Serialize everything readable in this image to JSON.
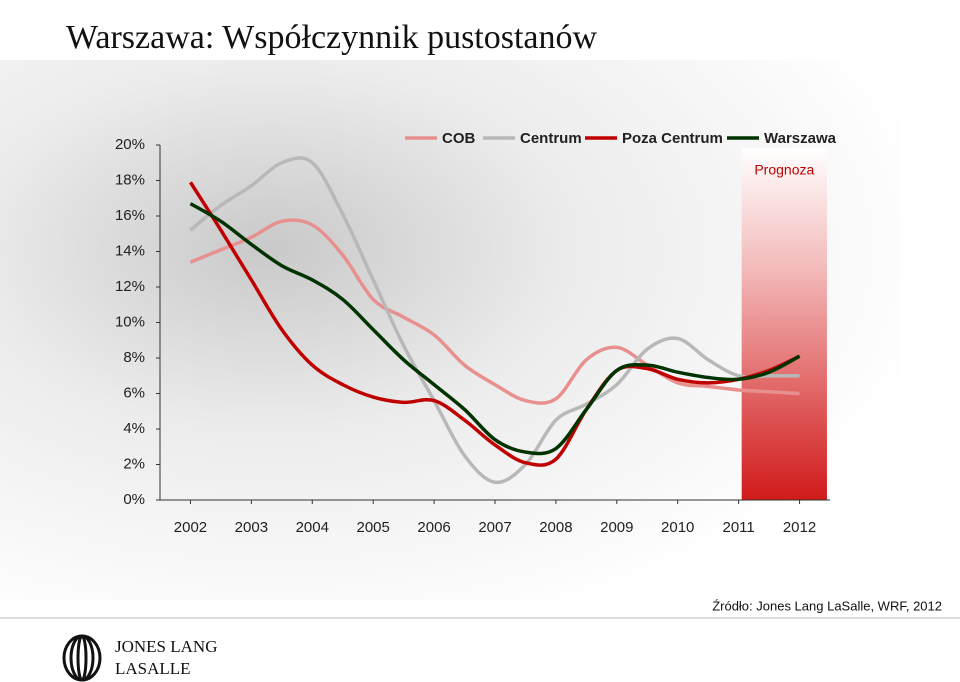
{
  "chart_data": {
    "type": "line",
    "title": "Warszawa: Współczynnik pustostanów",
    "x": [
      2002,
      2002.5,
      2003,
      2003.5,
      2004,
      2004.5,
      2005,
      2005.5,
      2006,
      2006.5,
      2007,
      2007.5,
      2008,
      2008.5,
      2009,
      2009.5,
      2010,
      2010.5,
      2011,
      2011.5,
      2012
    ],
    "xlim": [
      2001.5,
      2012.5
    ],
    "xticks": [
      2002,
      2003,
      2004,
      2005,
      2006,
      2007,
      2008,
      2009,
      2010,
      2011,
      2012
    ],
    "ylim": [
      0,
      20
    ],
    "yticks": [
      {
        "value": 0,
        "label": "0%"
      },
      {
        "value": 2,
        "label": "2%"
      },
      {
        "value": 4,
        "label": "4%"
      },
      {
        "value": 6,
        "label": "6%"
      },
      {
        "value": 8,
        "label": "8%"
      },
      {
        "value": 10,
        "label": "10%"
      },
      {
        "value": 12,
        "label": "12%"
      },
      {
        "value": 14,
        "label": "14%"
      },
      {
        "value": 16,
        "label": "16%"
      },
      {
        "value": 18,
        "label": "18%"
      },
      {
        "value": 20,
        "label": "20%"
      }
    ],
    "grid": false,
    "series": [
      {
        "name": "COB",
        "color": "#e8908f",
        "values": [
          13.4,
          14.1,
          14.8,
          15.7,
          15.5,
          13.8,
          11.3,
          10.3,
          9.3,
          7.6,
          6.5,
          5.6,
          5.7,
          7.9,
          8.6,
          7.6,
          6.6,
          6.4,
          6.2,
          6.1,
          6.0
        ]
      },
      {
        "name": "Centrum",
        "color": "#b8b8b8",
        "values": [
          15.2,
          16.6,
          17.7,
          19.0,
          19.0,
          16.1,
          12.4,
          8.7,
          5.6,
          2.5,
          1.0,
          2.0,
          4.5,
          5.4,
          6.5,
          8.5,
          9.1,
          7.9,
          7.0,
          7.0,
          7.0
        ]
      },
      {
        "name": "Poza Centrum",
        "color": "#c00000",
        "values": [
          17.9,
          15.2,
          12.4,
          9.6,
          7.6,
          6.5,
          5.8,
          5.5,
          5.6,
          4.5,
          3.1,
          2.1,
          2.3,
          5.1,
          7.3,
          7.4,
          6.8,
          6.6,
          6.8,
          7.3,
          8.1
        ]
      },
      {
        "name": "Warszawa",
        "color": "#003300",
        "values": [
          16.7,
          15.7,
          14.4,
          13.2,
          12.4,
          11.3,
          9.6,
          7.9,
          6.5,
          5.1,
          3.4,
          2.7,
          2.9,
          5.1,
          7.3,
          7.6,
          7.2,
          6.9,
          6.8,
          7.2,
          8.1
        ]
      }
    ],
    "forecast": {
      "label": "Prognoza",
      "xlim": [
        2011.05,
        2012.45
      ]
    },
    "source": "Źródło:  Jones Lang LaSalle, WRF, 2012",
    "logo": {
      "line1": "JONES LANG",
      "line2": "LASALLE"
    }
  }
}
